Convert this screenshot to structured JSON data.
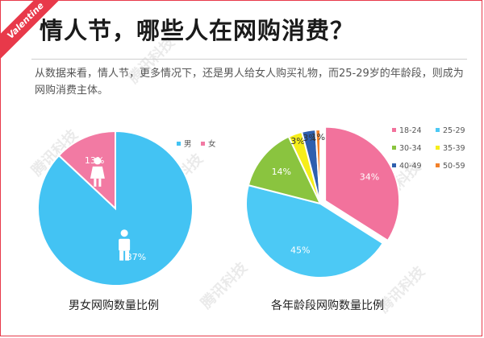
{
  "badge": "Valentine",
  "title": "情人节，哪些人在网购消费？",
  "description": "从数据来看，情人节，更多情况下，还是男人给女人购买礼物，而25-29岁的年龄段，则成为网购消费主体。",
  "watermark": "腾讯科技",
  "chart_data": [
    {
      "type": "pie",
      "title": "男女网购数量比例",
      "legend_position": "top-right",
      "series": [
        {
          "name": "男",
          "value": 87,
          "label": "87%",
          "color": "#43c3f3"
        },
        {
          "name": "女",
          "value": 13,
          "label": "13%",
          "color": "#f27aa3"
        }
      ]
    },
    {
      "type": "pie",
      "title": "各年龄段网购数量比例",
      "legend_position": "top-right",
      "series": [
        {
          "name": "18-24",
          "value": 34,
          "label": "34%",
          "color": "#f2729c",
          "exploded": true
        },
        {
          "name": "25-29",
          "value": 45,
          "label": "45%",
          "color": "#4cc9f5"
        },
        {
          "name": "30-34",
          "value": 14,
          "label": "14%",
          "color": "#8ac43f"
        },
        {
          "name": "35-39",
          "value": 3,
          "label": "3%",
          "color": "#f6ee1a"
        },
        {
          "name": "40-49",
          "value": 3,
          "label": "3%",
          "color": "#2e5fae"
        },
        {
          "name": "50-59",
          "value": 1,
          "label": "1%",
          "color": "#f2812a"
        }
      ]
    }
  ]
}
